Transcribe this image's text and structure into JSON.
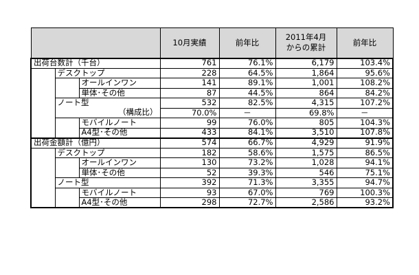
{
  "table": {
    "headers": [
      "",
      "10月実績",
      "前年比",
      "2011年4月\nからの累計",
      "前年比"
    ],
    "header_lines": {
      "cumulative_line1": "2011年4月",
      "cumulative_line2": "からの累計"
    },
    "rows": [
      {
        "label": "出荷台数計（千台）",
        "level": 0,
        "values": [
          "761",
          "76.1%",
          "6,179",
          "103.4%"
        ]
      },
      {
        "label": "デスクトップ",
        "level": 1,
        "values": [
          "228",
          "64.5%",
          "1,864",
          "95.6%"
        ]
      },
      {
        "label": "オールインワン",
        "level": 2,
        "values": [
          "141",
          "89.1%",
          "1,001",
          "108.2%"
        ]
      },
      {
        "label": "単体･その他",
        "level": 2,
        "values": [
          "87",
          "44.5%",
          "864",
          "84.2%"
        ]
      },
      {
        "label": "ノート型",
        "level": 1,
        "values": [
          "532",
          "82.5%",
          "4,315",
          "107.2%"
        ]
      },
      {
        "label": "（構成比）",
        "level": 1,
        "values": [
          "70.0%",
          "－",
          "69.8%",
          "－"
        ]
      },
      {
        "label": "モバイルノート",
        "level": 2,
        "values": [
          "99",
          "76.0%",
          "805",
          "104.3%"
        ]
      },
      {
        "label": "A4型･その他",
        "level": 2,
        "values": [
          "433",
          "84.1%",
          "3,510",
          "107.8%"
        ]
      },
      {
        "label": "出荷金額計（億円）",
        "level": 0,
        "values": [
          "574",
          "66.7%",
          "4,929",
          "91.9%"
        ]
      },
      {
        "label": "デスクトップ",
        "level": 1,
        "values": [
          "182",
          "58.6%",
          "1,575",
          "86.5%"
        ]
      },
      {
        "label": "オールインワン",
        "level": 2,
        "values": [
          "130",
          "73.2%",
          "1,028",
          "94.1%"
        ]
      },
      {
        "label": "単体･その他",
        "level": 2,
        "values": [
          "52",
          "39.3%",
          "546",
          "75.1%"
        ]
      },
      {
        "label": "ノート型",
        "level": 1,
        "values": [
          "392",
          "71.3%",
          "3,355",
          "94.7%"
        ]
      },
      {
        "label": "モバイルノート",
        "level": 2,
        "values": [
          "93",
          "67.0%",
          "769",
          "100.3%"
        ]
      },
      {
        "label": "A4型･その他",
        "level": 2,
        "values": [
          "298",
          "72.7%",
          "2,586",
          "93.2%"
        ]
      }
    ]
  }
}
